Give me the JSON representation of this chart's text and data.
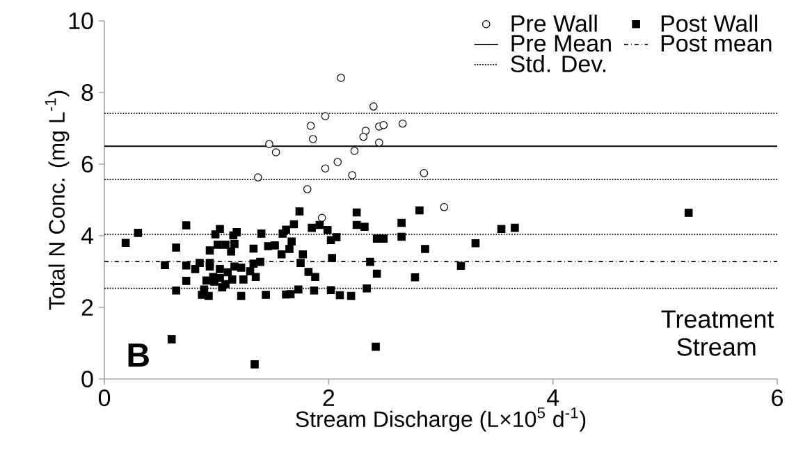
{
  "chart_data": {
    "type": "scatter",
    "xlabel": "Stream Discharge (L×10$^{5}$ d$^{-1}$)",
    "ylabel": "Total N Conc. (mg L$^{-1}$)",
    "xlim": [
      0,
      6
    ],
    "ylim": [
      0,
      10
    ],
    "xticks": [
      0,
      2,
      4,
      6
    ],
    "yticks": [
      0,
      2,
      4,
      6,
      8,
      10
    ],
    "grid": false,
    "legend": "top right",
    "series": [
      {
        "name": "Pre Wall",
        "color": "#000000",
        "marker": "circle",
        "x": [
          2.11,
          2.4,
          1.97,
          1.84,
          1.86,
          1.47,
          1.53,
          2.33,
          2.31,
          2.45,
          2.49,
          2.66,
          2.45,
          2.23,
          1.97,
          2.08,
          2.21,
          1.37,
          1.81,
          2.85,
          3.03,
          1.94
        ],
        "values": [
          8.41,
          7.61,
          7.34,
          7.07,
          6.7,
          6.56,
          6.33,
          6.93,
          6.76,
          7.05,
          7.09,
          7.13,
          6.6,
          6.37,
          5.88,
          6.06,
          5.69,
          5.63,
          5.3,
          5.75,
          4.8,
          4.5
        ]
      },
      {
        "name": "Post Wall",
        "color": "#000000",
        "marker": "square",
        "x": [
          0.19,
          0.3,
          0.73,
          0.64,
          0.54,
          0.73,
          0.81,
          0.85,
          0.73,
          0.64,
          0.6,
          0.94,
          0.99,
          1.03,
          1.01,
          1.08,
          1.13,
          1.16,
          1.15,
          1.18,
          0.94,
          0.94,
          1.03,
          1.1,
          1.16,
          1.22,
          0.91,
          0.97,
          0.98,
          1.03,
          1.08,
          1.14,
          1.05,
          0.89,
          0.87,
          0.93,
          1.22,
          1.24,
          1.3,
          1.35,
          1.33,
          1.39,
          1.33,
          1.4,
          1.34,
          1.44,
          1.46,
          1.52,
          1.58,
          1.65,
          1.67,
          1.59,
          1.62,
          1.69,
          1.74,
          1.62,
          1.66,
          1.73,
          1.75,
          1.77,
          1.82,
          1.88,
          1.87,
          1.85,
          1.92,
          1.99,
          2.02,
          2.07,
          2.03,
          2.02,
          2.1,
          2.2,
          2.25,
          2.25,
          2.32,
          2.81,
          2.65,
          2.65,
          2.43,
          2.49,
          2.86,
          3.31,
          3.54,
          3.66,
          5.21,
          2.37,
          2.43,
          2.77,
          3.18,
          2.34,
          2.42
        ],
        "values": [
          3.8,
          4.08,
          4.29,
          3.67,
          3.18,
          3.17,
          3.07,
          3.24,
          2.74,
          2.47,
          1.11,
          3.59,
          4.04,
          4.19,
          3.75,
          3.75,
          3.56,
          3.77,
          4.01,
          4.1,
          3.24,
          3.14,
          3.07,
          2.98,
          3.14,
          3.11,
          2.75,
          2.85,
          2.72,
          2.82,
          2.65,
          2.78,
          2.56,
          2.5,
          2.35,
          2.32,
          2.32,
          2.78,
          3.01,
          2.85,
          3.22,
          3.27,
          3.64,
          4.06,
          0.41,
          2.35,
          3.71,
          3.73,
          3.48,
          3.63,
          3.84,
          4.06,
          4.17,
          4.32,
          4.68,
          2.36,
          2.37,
          2.5,
          3.24,
          3.48,
          2.99,
          2.85,
          2.47,
          4.22,
          4.3,
          4.16,
          3.88,
          3.96,
          3.38,
          2.48,
          2.34,
          2.32,
          4.65,
          4.3,
          4.25,
          4.71,
          4.36,
          3.97,
          3.92,
          3.92,
          3.63,
          3.79,
          4.19,
          4.22,
          4.64,
          3.27,
          2.94,
          2.84,
          3.16,
          2.53,
          0.9
        ]
      }
    ],
    "ref_lines": [
      {
        "axis": "y",
        "value": 6.5,
        "label": "Pre Mean",
        "color": "#000000",
        "line_style": "solid"
      },
      {
        "axis": "y",
        "value": 3.28,
        "label": "Post mean",
        "color": "#000000",
        "line_style": "dashdot"
      },
      {
        "axis": "y",
        "value": 7.42,
        "label": "Std. Dev.",
        "color": "#000000",
        "line_style": "dotted"
      },
      {
        "axis": "y",
        "value": 5.57,
        "color": "#000000",
        "line_style": "dotted"
      },
      {
        "axis": "y",
        "value": 4.04,
        "color": "#000000",
        "line_style": "dotted"
      },
      {
        "axis": "y",
        "value": 2.53,
        "color": "#000000",
        "line_style": "dotted"
      }
    ],
    "annotations": [
      "B",
      "Treatment Stream"
    ]
  }
}
